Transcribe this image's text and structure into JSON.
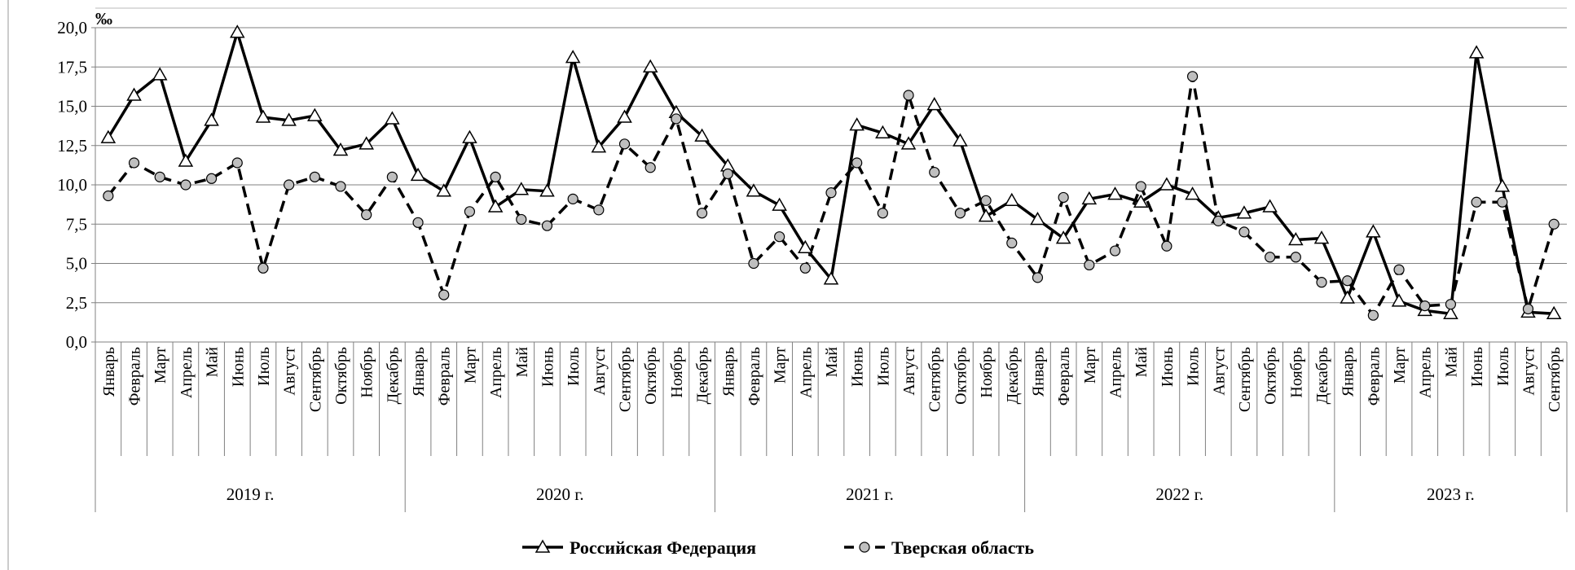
{
  "chart_data": {
    "type": "line",
    "unit_label": "‰",
    "groups": [
      {
        "label": "2019 г.",
        "categories": [
          "Январь",
          "Февраль",
          "Март",
          "Апрель",
          "Май",
          "Июнь",
          "Июль",
          "Август",
          "Сентябрь",
          "Октябрь",
          "Ноябрь",
          "Декабрь"
        ]
      },
      {
        "label": "2020 г.",
        "categories": [
          "Январь",
          "Февраль",
          "Март",
          "Апрель",
          "Май",
          "Июнь",
          "Июль",
          "Август",
          "Сентябрь",
          "Октябрь",
          "Ноябрь",
          "Декабрь"
        ]
      },
      {
        "label": "2021 г.",
        "categories": [
          "Январь",
          "Февраль",
          "Март",
          "Апрель",
          "Май",
          "Июнь",
          "Июль",
          "Август",
          "Сентябрь",
          "Октябрь",
          "Ноябрь",
          "Декабрь"
        ]
      },
      {
        "label": "2022 г.",
        "categories": [
          "Январь",
          "Февраль",
          "Март",
          "Апрель",
          "Май",
          "Июнь",
          "Июль",
          "Август",
          "Сентябрь",
          "Октябрь",
          "Ноябрь",
          "Декабрь"
        ]
      },
      {
        "label": "2023 г.",
        "categories": [
          "Январь",
          "Февраль",
          "Март",
          "Апрель",
          "Май",
          "Июнь",
          "Июль",
          "Август",
          "Сентябрь"
        ]
      }
    ],
    "series": [
      {
        "name": "Российская Федерация",
        "color": "#000000",
        "line_style": "solid",
        "marker": "triangle",
        "marker_fill": "#ffffff",
        "values": [
          13.0,
          15.7,
          17.0,
          11.5,
          14.1,
          19.7,
          14.3,
          14.1,
          14.4,
          12.2,
          12.6,
          14.2,
          10.6,
          9.6,
          13.0,
          8.6,
          9.7,
          9.6,
          18.1,
          12.4,
          14.3,
          17.5,
          14.6,
          13.1,
          11.2,
          9.6,
          8.7,
          6.0,
          4.0,
          13.8,
          13.3,
          12.6,
          15.1,
          12.8,
          8.0,
          9.0,
          7.8,
          6.6,
          9.1,
          9.4,
          8.9,
          10.0,
          9.4,
          7.9,
          8.2,
          8.6,
          6.5,
          6.6,
          2.8,
          7.0,
          2.6,
          2.0,
          1.8,
          18.4,
          9.9,
          1.9,
          1.8
        ]
      },
      {
        "name": "Тверская область",
        "color": "#000000",
        "line_style": "dashed",
        "marker": "circle",
        "marker_fill": "#bfbfbf",
        "values": [
          9.3,
          11.4,
          10.5,
          10.0,
          10.4,
          11.4,
          4.7,
          10.0,
          10.5,
          9.9,
          8.1,
          10.5,
          7.6,
          3.0,
          8.3,
          10.5,
          7.8,
          7.4,
          9.1,
          8.4,
          12.6,
          11.1,
          14.2,
          8.2,
          10.7,
          5.0,
          6.7,
          4.7,
          9.5,
          11.4,
          8.2,
          15.7,
          10.8,
          8.2,
          9.0,
          6.3,
          4.1,
          9.2,
          4.9,
          5.8,
          9.9,
          6.1,
          16.9,
          7.7,
          7.0,
          5.4,
          5.4,
          3.8,
          3.9,
          1.7,
          4.6,
          2.3,
          2.4,
          8.9,
          8.9,
          2.1,
          7.5
        ]
      }
    ],
    "ylim": [
      0,
      20
    ],
    "yticks": [
      {
        "value": 0,
        "label": "0,0"
      },
      {
        "value": 2.5,
        "label": "2,5"
      },
      {
        "value": 5,
        "label": "5,0"
      },
      {
        "value": 7.5,
        "label": "7,5"
      },
      {
        "value": 10,
        "label": "10,0"
      },
      {
        "value": 12.5,
        "label": "12,5"
      },
      {
        "value": 15,
        "label": "15,0"
      },
      {
        "value": 17.5,
        "label": "17,5"
      },
      {
        "value": 20,
        "label": "20,0"
      }
    ],
    "grid": true
  }
}
